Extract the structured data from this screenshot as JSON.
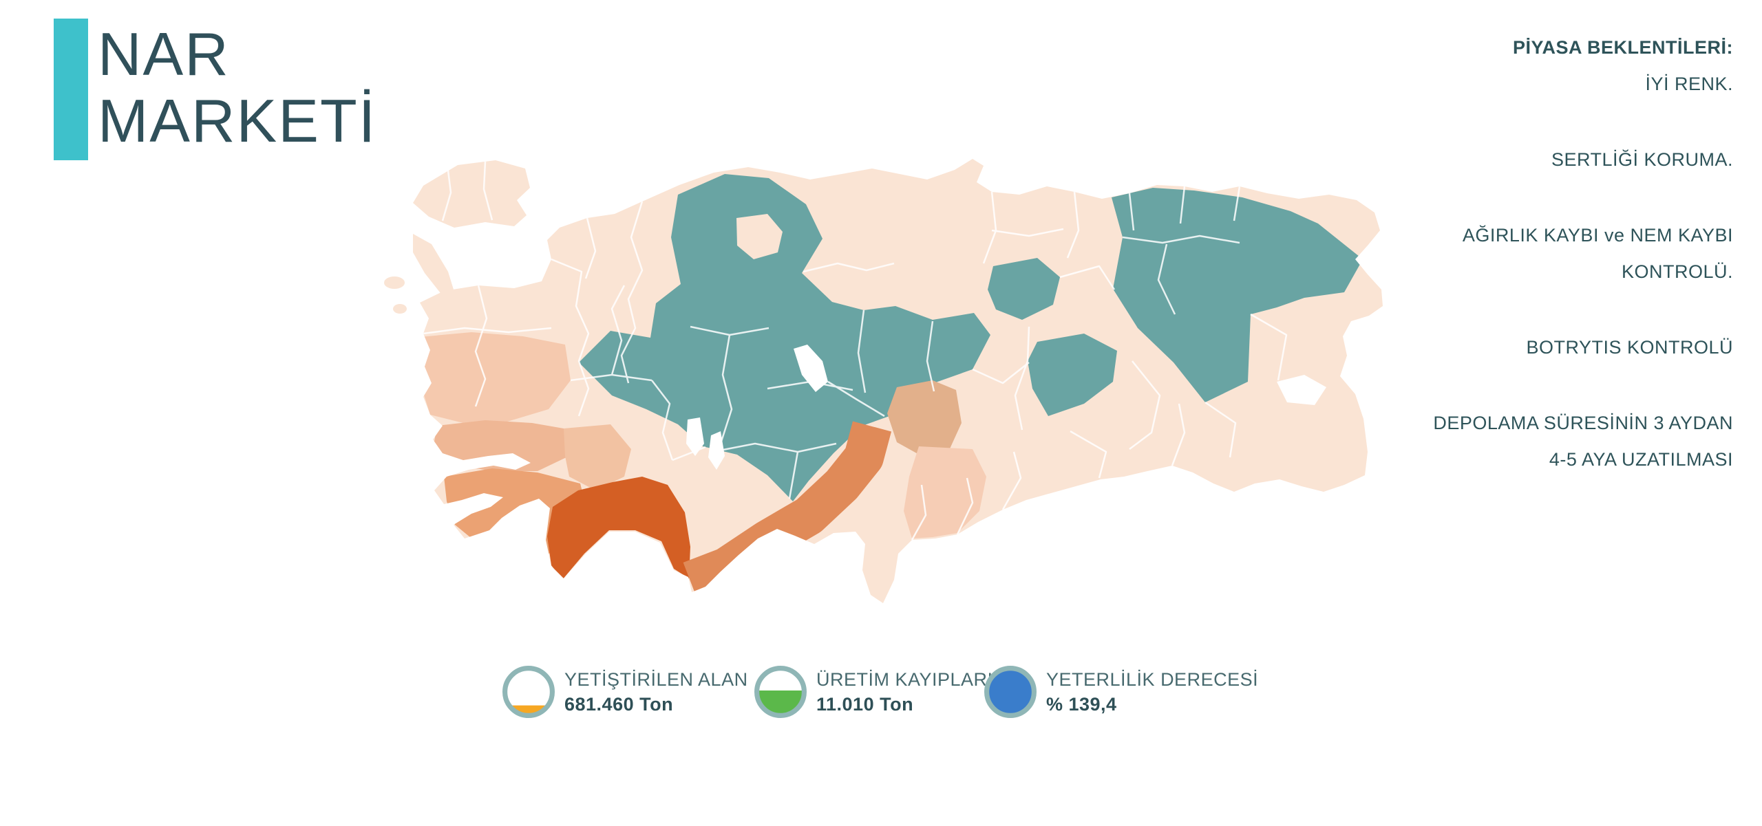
{
  "logo": {
    "line1": "NAR",
    "line2": "MARKETİ",
    "bar_color": "#3EC1CB",
    "text_color": "#30505A"
  },
  "expectations": {
    "title": "PİYASA BEKLENTİLERİ:",
    "items": [
      "İYİ RENK.",
      "SERTLİĞİ KORUMA.",
      "AĞIRLIK KAYBI ve NEM KAYBI\nKONTROLÜ.",
      "BOTRYTIS KONTROLÜ",
      "DEPOLAMA SÜRESİNİN 3 AYDAN\n4-5 AYA UZATILMASI"
    ],
    "text_color": "#2E5359"
  },
  "legend": {
    "ring_color": "#8FB6B6",
    "label_color": "#47696E",
    "value_color": "#2E4F56",
    "items": [
      {
        "label": "YETİŞTİRİLEN ALAN",
        "value": "681.460 Ton",
        "fill_percent": 21,
        "fill_color": "#F6A723"
      },
      {
        "label": "ÜRETİM KAYIPLARI",
        "value": "11.010 Ton",
        "fill_percent": 53,
        "fill_color": "#5BB84A"
      },
      {
        "label": "YETERLİLİK DERECESİ",
        "value": "% 139,4",
        "fill_percent": 100,
        "fill_color": "#3A7DCB"
      }
    ]
  },
  "map": {
    "description": "Turkey provinces choropleth — pomegranate production intensity",
    "palette": {
      "base": "#FAE4D4",
      "sea": "#FFFFFF",
      "border": "#FFFFFF",
      "teal": "#69A4A3",
      "intensity_highest": "#D45F24",
      "intensity_high": "#E08A58",
      "intensity_medium": "#EBA273",
      "intensity_medium2": "#EFB795",
      "intensity_light": "#F5C9AE",
      "intensity_light2": "#F2C2A2",
      "intensity_tan": "#E2B08B",
      "intensity_faint": "#F6CDB5"
    }
  }
}
